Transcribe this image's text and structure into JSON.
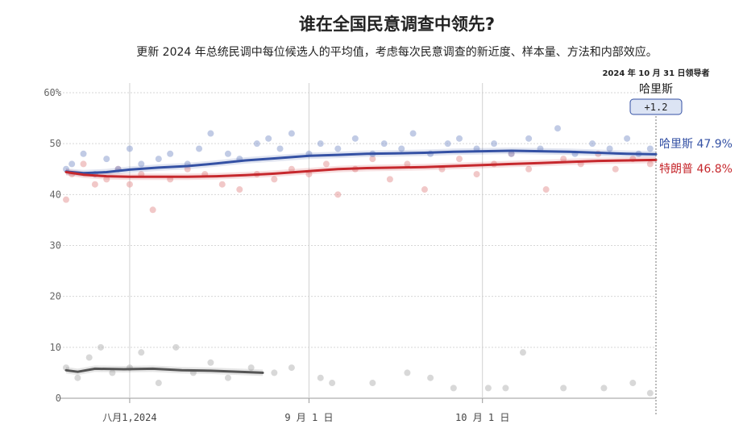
{
  "page": {
    "title": "谁在全国民意调查中领先?",
    "subtitle": "更新 2024 年总统民调中每位候选人的平均值，考虑每次民意调查的新近度、样本量、方法和内部效应。"
  },
  "leader_box": {
    "date_label": "2024 年 10 月 31 日领导者",
    "leader_name": "哈里斯",
    "margin": "+1.2"
  },
  "end_labels": {
    "harris": "哈里斯 47.9%",
    "trump": "特朗普 46.8%"
  },
  "colors": {
    "harris": "#3451a4",
    "trump": "#c6282d",
    "other": "#555555",
    "harris_dot": "#8ea0cf",
    "trump_dot": "#e69a9a",
    "other_dot": "#b8b8b8"
  },
  "chart_data": {
    "type": "line",
    "x_domain": [
      "2024-07-21",
      "2024-10-31"
    ],
    "ylim": [
      0,
      60
    ],
    "y_ticks": [
      0,
      10,
      20,
      30,
      40,
      50,
      60
    ],
    "y_tick_labels": [
      "0",
      "10",
      "20",
      "30",
      "40",
      "50",
      "60%"
    ],
    "x_ticks": [
      {
        "date": "2024-08-01",
        "label": "八月1,2024"
      },
      {
        "date": "2024-09-01",
        "label": "9 月 1 日"
      },
      {
        "date": "2024-10-01",
        "label": "10 月 1 日"
      }
    ],
    "series": [
      {
        "name": "哈里斯",
        "key": "harris",
        "points": [
          [
            "2024-07-21",
            44.5
          ],
          [
            "2024-07-24",
            44.2
          ],
          [
            "2024-07-28",
            44.4
          ],
          [
            "2024-08-01",
            44.9
          ],
          [
            "2024-08-06",
            45.3
          ],
          [
            "2024-08-11",
            45.6
          ],
          [
            "2024-08-16",
            46.1
          ],
          [
            "2024-08-21",
            46.7
          ],
          [
            "2024-08-26",
            47.1
          ],
          [
            "2024-09-01",
            47.6
          ],
          [
            "2024-09-06",
            47.8
          ],
          [
            "2024-09-11",
            48.0
          ],
          [
            "2024-09-16",
            48.1
          ],
          [
            "2024-09-21",
            48.2
          ],
          [
            "2024-09-26",
            48.4
          ],
          [
            "2024-10-01",
            48.5
          ],
          [
            "2024-10-06",
            48.6
          ],
          [
            "2024-10-11",
            48.5
          ],
          [
            "2024-10-16",
            48.4
          ],
          [
            "2024-10-21",
            48.2
          ],
          [
            "2024-10-26",
            48.0
          ],
          [
            "2024-10-31",
            47.9
          ]
        ]
      },
      {
        "name": "特朗普",
        "key": "trump",
        "points": [
          [
            "2024-07-21",
            44.4
          ],
          [
            "2024-07-24",
            43.9
          ],
          [
            "2024-07-28",
            43.6
          ],
          [
            "2024-08-01",
            43.5
          ],
          [
            "2024-08-06",
            43.5
          ],
          [
            "2024-08-11",
            43.5
          ],
          [
            "2024-08-16",
            43.6
          ],
          [
            "2024-08-21",
            43.8
          ],
          [
            "2024-08-26",
            44.1
          ],
          [
            "2024-09-01",
            44.6
          ],
          [
            "2024-09-06",
            45.0
          ],
          [
            "2024-09-11",
            45.2
          ],
          [
            "2024-09-16",
            45.3
          ],
          [
            "2024-09-21",
            45.4
          ],
          [
            "2024-09-26",
            45.6
          ],
          [
            "2024-10-01",
            45.8
          ],
          [
            "2024-10-06",
            46.0
          ],
          [
            "2024-10-11",
            46.2
          ],
          [
            "2024-10-16",
            46.4
          ],
          [
            "2024-10-21",
            46.6
          ],
          [
            "2024-10-26",
            46.7
          ],
          [
            "2024-10-31",
            46.8
          ]
        ]
      },
      {
        "key": "other",
        "points": [
          [
            "2024-07-21",
            5.5
          ],
          [
            "2024-07-23",
            5.2
          ],
          [
            "2024-07-26",
            5.8
          ],
          [
            "2024-07-31",
            5.7
          ],
          [
            "2024-08-05",
            5.8
          ],
          [
            "2024-08-10",
            5.5
          ],
          [
            "2024-08-15",
            5.4
          ],
          [
            "2024-08-20",
            5.2
          ],
          [
            "2024-08-24",
            5.0
          ]
        ]
      }
    ],
    "poll_dots": {
      "harris": [
        [
          "2024-07-21",
          45
        ],
        [
          "2024-07-22",
          46
        ],
        [
          "2024-07-24",
          48
        ],
        [
          "2024-07-26",
          44
        ],
        [
          "2024-07-28",
          47
        ],
        [
          "2024-07-30",
          45
        ],
        [
          "2024-08-01",
          49
        ],
        [
          "2024-08-03",
          46
        ],
        [
          "2024-08-06",
          47
        ],
        [
          "2024-08-08",
          48
        ],
        [
          "2024-08-11",
          46
        ],
        [
          "2024-08-13",
          49
        ],
        [
          "2024-08-15",
          52
        ],
        [
          "2024-08-18",
          48
        ],
        [
          "2024-08-20",
          47
        ],
        [
          "2024-08-23",
          50
        ],
        [
          "2024-08-25",
          51
        ],
        [
          "2024-08-27",
          49
        ],
        [
          "2024-08-29",
          52
        ],
        [
          "2024-09-01",
          48
        ],
        [
          "2024-09-03",
          50
        ],
        [
          "2024-09-06",
          49
        ],
        [
          "2024-09-09",
          51
        ],
        [
          "2024-09-12",
          48
        ],
        [
          "2024-09-14",
          50
        ],
        [
          "2024-09-17",
          49
        ],
        [
          "2024-09-19",
          52
        ],
        [
          "2024-09-22",
          48
        ],
        [
          "2024-09-25",
          50
        ],
        [
          "2024-09-27",
          51
        ],
        [
          "2024-09-30",
          49
        ],
        [
          "2024-10-03",
          50
        ],
        [
          "2024-10-06",
          48
        ],
        [
          "2024-10-09",
          51
        ],
        [
          "2024-10-11",
          49
        ],
        [
          "2024-10-14",
          53
        ],
        [
          "2024-10-17",
          48
        ],
        [
          "2024-10-20",
          50
        ],
        [
          "2024-10-23",
          49
        ],
        [
          "2024-10-26",
          51
        ],
        [
          "2024-10-28",
          48
        ],
        [
          "2024-10-30",
          49
        ]
      ],
      "trump": [
        [
          "2024-07-21",
          39
        ],
        [
          "2024-07-22",
          44
        ],
        [
          "2024-07-24",
          46
        ],
        [
          "2024-07-26",
          42
        ],
        [
          "2024-07-28",
          43
        ],
        [
          "2024-07-30",
          45
        ],
        [
          "2024-08-01",
          42
        ],
        [
          "2024-08-03",
          44
        ],
        [
          "2024-08-05",
          37
        ],
        [
          "2024-08-08",
          43
        ],
        [
          "2024-08-11",
          45
        ],
        [
          "2024-08-14",
          44
        ],
        [
          "2024-08-17",
          42
        ],
        [
          "2024-08-20",
          41
        ],
        [
          "2024-08-23",
          44
        ],
        [
          "2024-08-26",
          43
        ],
        [
          "2024-08-29",
          45
        ],
        [
          "2024-09-01",
          44
        ],
        [
          "2024-09-04",
          46
        ],
        [
          "2024-09-06",
          40
        ],
        [
          "2024-09-09",
          45
        ],
        [
          "2024-09-12",
          47
        ],
        [
          "2024-09-15",
          43
        ],
        [
          "2024-09-18",
          46
        ],
        [
          "2024-09-21",
          41
        ],
        [
          "2024-09-24",
          45
        ],
        [
          "2024-09-27",
          47
        ],
        [
          "2024-09-30",
          44
        ],
        [
          "2024-10-03",
          46
        ],
        [
          "2024-10-06",
          48
        ],
        [
          "2024-10-09",
          45
        ],
        [
          "2024-10-12",
          41
        ],
        [
          "2024-10-15",
          47
        ],
        [
          "2024-10-18",
          46
        ],
        [
          "2024-10-21",
          48
        ],
        [
          "2024-10-24",
          45
        ],
        [
          "2024-10-27",
          47
        ],
        [
          "2024-10-30",
          46
        ]
      ],
      "other": [
        [
          "2024-07-21",
          6
        ],
        [
          "2024-07-23",
          4
        ],
        [
          "2024-07-25",
          8
        ],
        [
          "2024-07-27",
          10
        ],
        [
          "2024-07-29",
          5
        ],
        [
          "2024-08-01",
          6
        ],
        [
          "2024-08-03",
          9
        ],
        [
          "2024-08-06",
          3
        ],
        [
          "2024-08-09",
          10
        ],
        [
          "2024-08-12",
          5
        ],
        [
          "2024-08-15",
          7
        ],
        [
          "2024-08-18",
          4
        ],
        [
          "2024-08-22",
          6
        ],
        [
          "2024-08-26",
          5
        ],
        [
          "2024-08-29",
          6
        ],
        [
          "2024-09-03",
          4
        ],
        [
          "2024-09-05",
          3
        ],
        [
          "2024-09-12",
          3
        ],
        [
          "2024-09-18",
          5
        ],
        [
          "2024-09-22",
          4
        ],
        [
          "2024-09-26",
          2
        ],
        [
          "2024-10-02",
          2
        ],
        [
          "2024-10-05",
          2
        ],
        [
          "2024-10-08",
          9
        ],
        [
          "2024-10-15",
          2
        ],
        [
          "2024-10-22",
          2
        ],
        [
          "2024-10-27",
          3
        ],
        [
          "2024-10-30",
          1
        ]
      ]
    }
  }
}
